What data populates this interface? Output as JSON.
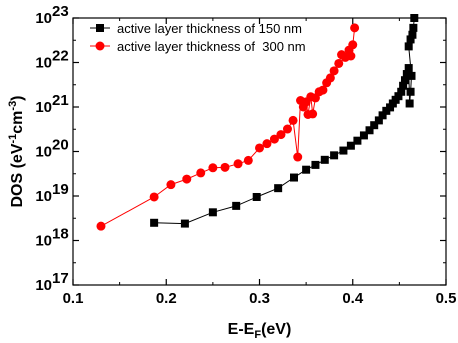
{
  "chart_data": {
    "type": "scatter",
    "title": "",
    "xlabel": {
      "main": "E-E",
      "sub": "F",
      "unit": "(eV)"
    },
    "ylabel": {
      "main": "DOS (eV",
      "sup1": "-1",
      "mid": "cm",
      "sup2": "-3",
      "end": ")"
    },
    "xlim": [
      0.1,
      0.5
    ],
    "ylim_log10": [
      17,
      23
    ],
    "yscale": "log",
    "x_ticks": [
      {
        "value": 0.1,
        "label": "0.1"
      },
      {
        "value": 0.2,
        "label": "0.2"
      },
      {
        "value": 0.3,
        "label": "0.3"
      },
      {
        "value": 0.4,
        "label": "0.4"
      },
      {
        "value": 0.5,
        "label": "0.5"
      }
    ],
    "y_ticks": [
      {
        "exp": 17,
        "base": "10",
        "sup": "17"
      },
      {
        "exp": 18,
        "base": "10",
        "sup": "18"
      },
      {
        "exp": 19,
        "base": "10",
        "sup": "19"
      },
      {
        "exp": 20,
        "base": "10",
        "sup": "20"
      },
      {
        "exp": 21,
        "base": "10",
        "sup": "21"
      },
      {
        "exp": 22,
        "base": "10",
        "sup": "22"
      },
      {
        "exp": 23,
        "base": "10",
        "sup": "23"
      }
    ],
    "grid": false,
    "legend_position": "top-left",
    "series": [
      {
        "name": "active layer thickness of 150 nm",
        "color": "#000000",
        "marker": "square",
        "points": [
          [
            0.187,
            2.5e+18
          ],
          [
            0.22,
            2.4e+18
          ],
          [
            0.25,
            4.3e+18
          ],
          [
            0.275,
            6e+18
          ],
          [
            0.297,
            9.5e+18
          ],
          [
            0.32,
            1.5e+19
          ],
          [
            0.337,
            2.6e+19
          ],
          [
            0.35,
            3.9e+19
          ],
          [
            0.36,
            5e+19
          ],
          [
            0.37,
            6.5e+19
          ],
          [
            0.38,
            8.2e+19
          ],
          [
            0.39,
            1.05e+20
          ],
          [
            0.398,
            1.35e+20
          ],
          [
            0.405,
            1.75e+20
          ],
          [
            0.412,
            2.3e+20
          ],
          [
            0.418,
            3e+20
          ],
          [
            0.423,
            3.9e+20
          ],
          [
            0.428,
            5e+20
          ],
          [
            0.432,
            6.5e+20
          ],
          [
            0.436,
            8.2e+20
          ],
          [
            0.44,
            9.8e+20
          ],
          [
            0.443,
            1.2e+21
          ],
          [
            0.446,
            1.45e+21
          ],
          [
            0.449,
            1.75e+21
          ],
          [
            0.452,
            2.2e+21
          ],
          [
            0.454,
            3e+21
          ],
          [
            0.456,
            4e+21
          ],
          [
            0.458,
            5.5e+21
          ],
          [
            0.46,
            7.5e+21
          ],
          [
            0.461,
            1.2e+21
          ],
          [
            0.462,
            2.2e+21
          ],
          [
            0.463,
            5e+21
          ],
          [
            0.46,
            2.3e+22
          ],
          [
            0.462,
            3.3e+22
          ],
          [
            0.464,
            4.2e+22
          ],
          [
            0.465,
            6e+22
          ],
          [
            0.466,
            1e+23
          ]
        ]
      },
      {
        "name": "active layer thickness of  300 nm",
        "color": "#ff0000",
        "marker": "circle",
        "points": [
          [
            0.13,
            2.1e+18
          ],
          [
            0.187,
            9.5e+18
          ],
          [
            0.205,
            1.8e+19
          ],
          [
            0.222,
            2.4e+19
          ],
          [
            0.237,
            3.3e+19
          ],
          [
            0.25,
            4.3e+19
          ],
          [
            0.263,
            4.4e+19
          ],
          [
            0.277,
            5.3e+19
          ],
          [
            0.288,
            6.3e+19
          ],
          [
            0.3,
            1.2e+20
          ],
          [
            0.308,
            1.5e+20
          ],
          [
            0.316,
            1.9e+20
          ],
          [
            0.323,
            2.4e+20
          ],
          [
            0.33,
            3.2e+20
          ],
          [
            0.336,
            5e+20
          ],
          [
            0.341,
            7.5e+19
          ],
          [
            0.344,
            1.4e+21
          ],
          [
            0.347,
            1e+21
          ],
          [
            0.35,
            1.3e+21
          ],
          [
            0.352,
            6.8e+20
          ],
          [
            0.355,
            1.7e+21
          ],
          [
            0.357,
            7e+20
          ],
          [
            0.36,
            1.6e+21
          ],
          [
            0.364,
            2.2e+21
          ],
          [
            0.368,
            2.4e+21
          ],
          [
            0.372,
            3.5e+21
          ],
          [
            0.376,
            4.5e+21
          ],
          [
            0.38,
            6.5e+21
          ],
          [
            0.385,
            9.5e+21
          ],
          [
            0.388,
            1.5e+22
          ],
          [
            0.392,
            1.3e+22
          ],
          [
            0.396,
            1.9e+22
          ],
          [
            0.398,
            1.4e+22
          ],
          [
            0.4,
            2.5e+22
          ],
          [
            0.402,
            6e+22
          ]
        ]
      }
    ]
  }
}
